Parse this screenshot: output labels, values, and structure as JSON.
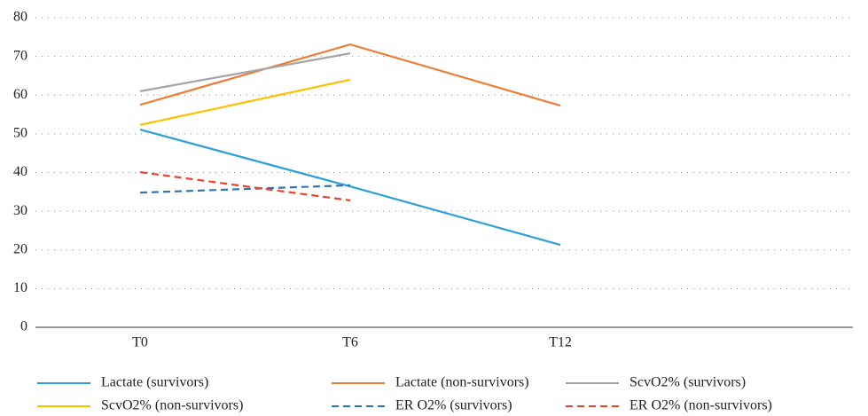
{
  "chart_data": {
    "type": "line",
    "categories": [
      "T0",
      "T6",
      "T12",
      null
    ],
    "series": [
      {
        "name": "Lactate (survivors)",
        "color": "#2e9fd8",
        "dashed": false,
        "values": [
          51.1,
          36.4,
          21.3,
          null
        ]
      },
      {
        "name": "Lactate (non-survivors)",
        "color": "#ed7d31",
        "dashed": false,
        "values": [
          57.5,
          73.1,
          57.3,
          null
        ]
      },
      {
        "name": "ScvO2% (survivors)",
        "color": "#a5a5a5",
        "dashed": false,
        "values": [
          61,
          70.8,
          null,
          null
        ]
      },
      {
        "name": "ScvO2% (non-survivors)",
        "color": "#ffc000",
        "dashed": false,
        "values": [
          52.3,
          64,
          null,
          null
        ]
      },
      {
        "name": "ER O2% (survivors)",
        "color": "#2e75b6",
        "dashed": true,
        "values": [
          34.8,
          36.7,
          null,
          null
        ]
      },
      {
        "name": "ER O2% (non-survivors)",
        "color": "#e8442e",
        "dashed": true,
        "values": [
          40.1,
          32.8,
          null,
          null
        ]
      }
    ],
    "ylim": [
      0,
      80
    ],
    "yticks": [
      0,
      10,
      20,
      30,
      40,
      50,
      60,
      70,
      80
    ],
    "grid": true
  }
}
